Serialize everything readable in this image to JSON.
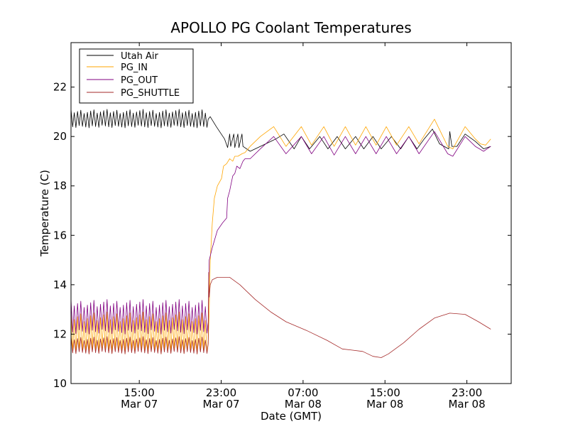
{
  "chart_data": {
    "type": "line",
    "title": "APOLLO PG Coolant Temperatures",
    "xlabel": "Date (GMT)",
    "ylabel": "Temperature (C)",
    "x_unit": "hours since Mar 07 08:20 GMT (axis left edge)",
    "xlim": [
      0,
      43
    ],
    "ylim": [
      10,
      23.8
    ],
    "y_ticks": [
      10,
      12,
      14,
      16,
      18,
      20,
      22
    ],
    "x_ticks": [
      {
        "x": 6.67,
        "time": "15:00",
        "date": "Mar 07"
      },
      {
        "x": 14.67,
        "time": "23:00",
        "date": "Mar 07"
      },
      {
        "x": 22.67,
        "time": "07:00",
        "date": "Mar 08"
      },
      {
        "x": 30.67,
        "time": "15:00",
        "date": "Mar 08"
      },
      {
        "x": 38.67,
        "time": "23:00",
        "date": "Mar 08"
      }
    ],
    "grid": false,
    "legend_position": "top-left",
    "series": [
      {
        "name": "Utah Air",
        "color": "#000000",
        "oscillation": {
          "x_end": 13.4,
          "low": 20.35,
          "high": 21.1,
          "period": 0.32
        },
        "points": [
          [
            13.4,
            20.7
          ],
          [
            13.6,
            20.8
          ],
          [
            14.2,
            20.4
          ],
          [
            15.0,
            19.9
          ],
          [
            15.3,
            19.55
          ],
          [
            15.5,
            20.1
          ],
          [
            15.6,
            19.6
          ],
          [
            15.9,
            20.1
          ],
          [
            16.0,
            19.55
          ],
          [
            16.3,
            20.1
          ],
          [
            16.4,
            19.55
          ],
          [
            16.7,
            20.1
          ],
          [
            16.8,
            19.6
          ],
          [
            17.5,
            19.4
          ],
          [
            18.5,
            19.6
          ],
          [
            20.0,
            19.9
          ],
          [
            20.8,
            20.1
          ],
          [
            21.8,
            19.5
          ],
          [
            22.5,
            20.0
          ],
          [
            23.3,
            19.5
          ],
          [
            24.3,
            20.0
          ],
          [
            25.1,
            19.5
          ],
          [
            26.0,
            20.0
          ],
          [
            26.8,
            19.5
          ],
          [
            27.8,
            20.0
          ],
          [
            28.6,
            19.5
          ],
          [
            29.5,
            20.0
          ],
          [
            30.3,
            19.5
          ],
          [
            31.3,
            20.0
          ],
          [
            32.2,
            19.5
          ],
          [
            33.0,
            20.0
          ],
          [
            33.8,
            19.5
          ],
          [
            34.5,
            19.9
          ],
          [
            35.3,
            20.3
          ],
          [
            36.0,
            19.7
          ],
          [
            36.9,
            19.5
          ],
          [
            37.0,
            20.2
          ],
          [
            37.2,
            19.6
          ],
          [
            37.7,
            19.6
          ],
          [
            38.5,
            20.1
          ],
          [
            39.5,
            19.8
          ],
          [
            40.3,
            19.5
          ],
          [
            41.0,
            19.6
          ]
        ]
      },
      {
        "name": "PG_IN",
        "color": "#ffa500",
        "oscillation": {
          "x_end": 13.4,
          "low": 11.2,
          "high": 12.9,
          "period": 0.32
        },
        "points": [
          [
            13.4,
            11.6
          ],
          [
            13.5,
            13.0
          ],
          [
            13.6,
            15.0
          ],
          [
            13.8,
            16.5
          ],
          [
            14.0,
            17.5
          ],
          [
            14.3,
            18.0
          ],
          [
            14.7,
            18.3
          ],
          [
            14.9,
            18.8
          ],
          [
            15.2,
            18.9
          ],
          [
            15.5,
            19.1
          ],
          [
            15.8,
            19.0
          ],
          [
            16.0,
            19.2
          ],
          [
            16.3,
            19.2
          ],
          [
            16.7,
            19.3
          ],
          [
            17.0,
            19.35
          ],
          [
            17.5,
            19.6
          ],
          [
            18.5,
            20.0
          ],
          [
            19.8,
            20.4
          ],
          [
            21.0,
            19.6
          ],
          [
            22.5,
            20.4
          ],
          [
            23.5,
            19.65
          ],
          [
            24.7,
            20.4
          ],
          [
            25.7,
            19.6
          ],
          [
            26.8,
            20.4
          ],
          [
            27.8,
            19.65
          ],
          [
            28.8,
            20.4
          ],
          [
            29.8,
            19.65
          ],
          [
            30.8,
            20.4
          ],
          [
            31.8,
            19.65
          ],
          [
            33.0,
            20.4
          ],
          [
            34.0,
            19.7
          ],
          [
            35.5,
            20.7
          ],
          [
            36.8,
            19.6
          ],
          [
            37.3,
            19.5
          ],
          [
            38.5,
            20.4
          ],
          [
            39.5,
            19.9
          ],
          [
            40.0,
            19.7
          ],
          [
            40.5,
            19.65
          ],
          [
            41.0,
            19.9
          ]
        ]
      },
      {
        "name": "PG_OUT",
        "color": "#800080",
        "oscillation": {
          "x_end": 13.4,
          "low": 12.0,
          "high": 13.4,
          "period": 0.32
        },
        "points": [
          [
            13.4,
            12.5
          ],
          [
            13.5,
            15.0
          ],
          [
            13.8,
            15.5
          ],
          [
            14.3,
            16.2
          ],
          [
            14.8,
            16.5
          ],
          [
            15.2,
            16.7
          ],
          [
            15.3,
            17.5
          ],
          [
            15.5,
            17.8
          ],
          [
            15.6,
            18.0
          ],
          [
            15.8,
            18.4
          ],
          [
            16.0,
            18.5
          ],
          [
            16.2,
            18.8
          ],
          [
            16.5,
            18.7
          ],
          [
            16.8,
            19.0
          ],
          [
            17.0,
            19.1
          ],
          [
            17.5,
            19.1
          ],
          [
            18.5,
            19.5
          ],
          [
            19.8,
            20.0
          ],
          [
            21.0,
            19.3
          ],
          [
            22.5,
            20.0
          ],
          [
            23.5,
            19.3
          ],
          [
            24.7,
            20.0
          ],
          [
            25.7,
            19.25
          ],
          [
            26.8,
            20.0
          ],
          [
            27.8,
            19.3
          ],
          [
            28.8,
            20.0
          ],
          [
            29.8,
            19.3
          ],
          [
            30.8,
            20.0
          ],
          [
            31.8,
            19.3
          ],
          [
            33.0,
            20.0
          ],
          [
            34.0,
            19.3
          ],
          [
            35.5,
            20.2
          ],
          [
            36.8,
            19.3
          ],
          [
            37.3,
            19.2
          ],
          [
            38.5,
            20.0
          ],
          [
            39.5,
            19.6
          ],
          [
            40.3,
            19.4
          ],
          [
            41.0,
            19.6
          ]
        ]
      },
      {
        "name": "PG_SHUTTLE",
        "color": "#a52a2a",
        "oscillation": {
          "x_end": 13.4,
          "low": 11.2,
          "high": 11.9,
          "period": 0.32
        },
        "points": [
          [
            13.4,
            11.6
          ],
          [
            13.45,
            14.5
          ],
          [
            13.5,
            13.5
          ],
          [
            13.6,
            14.0
          ],
          [
            13.8,
            14.2
          ],
          [
            14.3,
            14.3
          ],
          [
            15.5,
            14.3
          ],
          [
            16.5,
            14.0
          ],
          [
            18.0,
            13.4
          ],
          [
            19.5,
            12.9
          ],
          [
            21.0,
            12.5
          ],
          [
            23.0,
            12.15
          ],
          [
            25.0,
            11.75
          ],
          [
            26.5,
            11.4
          ],
          [
            27.5,
            11.35
          ],
          [
            28.5,
            11.3
          ],
          [
            29.5,
            11.1
          ],
          [
            30.3,
            11.05
          ],
          [
            31.0,
            11.2
          ],
          [
            32.5,
            11.65
          ],
          [
            34.0,
            12.2
          ],
          [
            35.5,
            12.65
          ],
          [
            37.0,
            12.85
          ],
          [
            38.5,
            12.8
          ],
          [
            39.8,
            12.5
          ],
          [
            41.0,
            12.2
          ]
        ]
      }
    ]
  }
}
